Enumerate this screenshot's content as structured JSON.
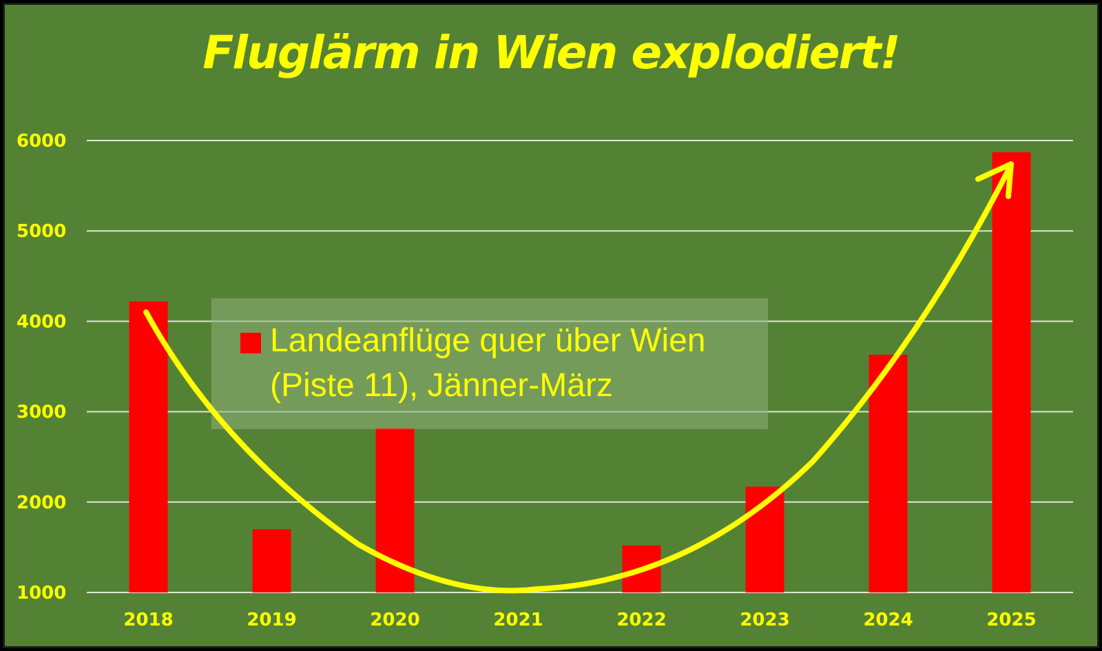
{
  "chart_data": {
    "type": "bar",
    "title": "Fluglärm in Wien explodiert!",
    "categories": [
      "2018",
      "2019",
      "2020",
      "2021",
      "2022",
      "2023",
      "2024",
      "2025"
    ],
    "series": [
      {
        "name": "Landeanflüge quer über Wien (Piste 11), Jänner-März",
        "values": [
          4220,
          1700,
          2820,
          990,
          1520,
          2170,
          3630,
          5870
        ]
      }
    ],
    "legend_lines": [
      "Landeanflüge quer über Wien",
      "(Piste 11), Jänner-März"
    ],
    "ylim": [
      1000,
      6000
    ],
    "yticks": [
      1000,
      2000,
      3000,
      4000,
      5000,
      6000
    ],
    "xlabel": "",
    "ylabel": "",
    "grid": true,
    "legend_position": "center",
    "trend_arrow": "yellow U-shaped curve ending in an upward arrow",
    "colors": {
      "background": "#548235",
      "bar": "#ff0000",
      "text": "#ffff00",
      "grid": "#dfe8d6",
      "arrow": "#ffff00"
    }
  }
}
